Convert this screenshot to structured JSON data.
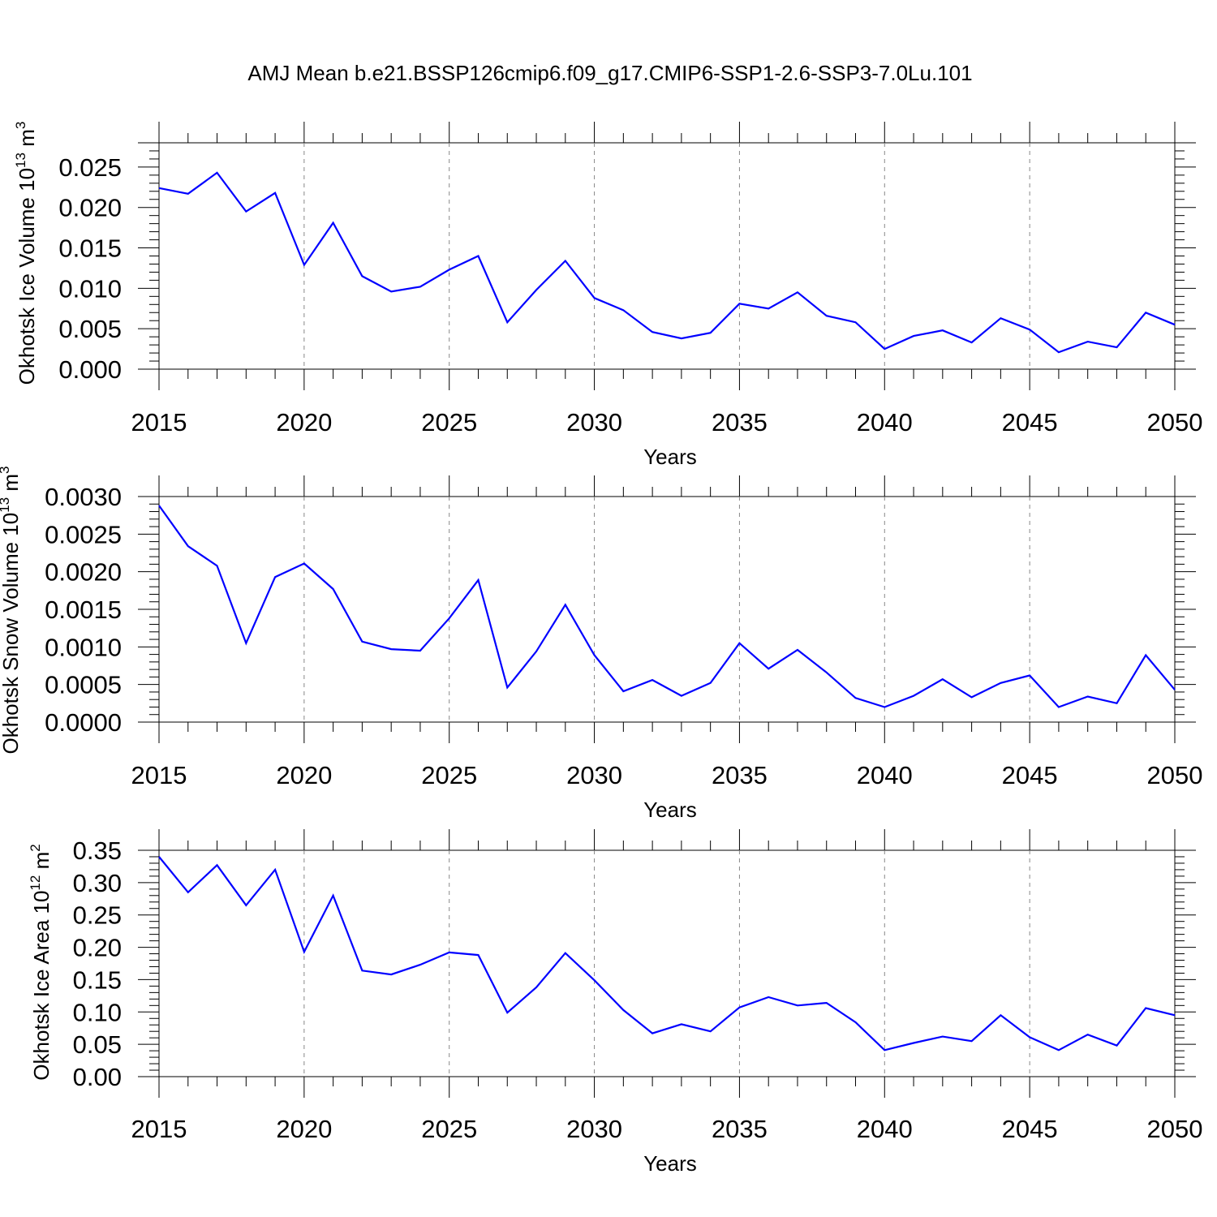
{
  "title": "AMJ Mean b.e21.BSSP126cmip6.f09_g17.CMIP6-SSP1-2.6-SSP3-7.0Lu.101",
  "chart_data": [
    {
      "type": "line",
      "name": "ice-volume",
      "ylabel": {
        "main": "Okhotsk Ice Volume 10",
        "exp": "13",
        "unit": " m",
        "unit_exp": "3"
      },
      "xlabel": "Years",
      "xlim": [
        2015,
        2050
      ],
      "ylim": [
        0.0,
        0.028
      ],
      "yticks": [
        0.0,
        0.005,
        0.01,
        0.015,
        0.02,
        0.025
      ],
      "ytick_labels": [
        "0.000",
        "0.005",
        "0.010",
        "0.015",
        "0.020",
        "0.025"
      ],
      "xticks": [
        2015,
        2020,
        2025,
        2030,
        2035,
        2040,
        2045,
        2050
      ],
      "xtick_labels": [
        "2015",
        "2020",
        "2025",
        "2030",
        "2035",
        "2040",
        "2045",
        "2050"
      ],
      "series": [
        {
          "name": "Okhotsk Ice Volume",
          "color": "#0000ff",
          "x": [
            2015,
            2016,
            2017,
            2018,
            2019,
            2020,
            2021,
            2022,
            2023,
            2024,
            2025,
            2026,
            2027,
            2028,
            2029,
            2030,
            2031,
            2032,
            2033,
            2034,
            2035,
            2036,
            2037,
            2038,
            2039,
            2040,
            2041,
            2042,
            2043,
            2044,
            2045,
            2046,
            2047,
            2048,
            2049,
            2050
          ],
          "values": [
            0.0224,
            0.0217,
            0.0243,
            0.0195,
            0.0218,
            0.0129,
            0.0181,
            0.0115,
            0.0096,
            0.0102,
            0.0123,
            0.014,
            0.0058,
            0.0098,
            0.0134,
            0.0088,
            0.0073,
            0.0046,
            0.0038,
            0.0045,
            0.0081,
            0.0075,
            0.0095,
            0.0066,
            0.0058,
            0.0025,
            0.0041,
            0.0048,
            0.0033,
            0.0063,
            0.0049,
            0.0021,
            0.0034,
            0.0027,
            0.007,
            0.0055
          ]
        }
      ]
    },
    {
      "type": "line",
      "name": "snow-volume",
      "ylabel": {
        "main": "Okhotsk Snow Volume 10",
        "exp": "13",
        "unit": " m",
        "unit_exp": "3"
      },
      "xlabel": "Years",
      "xlim": [
        2015,
        2050
      ],
      "ylim": [
        0.0,
        0.003
      ],
      "yticks": [
        0.0,
        0.0005,
        0.001,
        0.0015,
        0.002,
        0.0025,
        0.003
      ],
      "ytick_labels": [
        "0.0000",
        "0.0005",
        "0.0010",
        "0.0015",
        "0.0020",
        "0.0025",
        "0.0030"
      ],
      "xticks": [
        2015,
        2020,
        2025,
        2030,
        2035,
        2040,
        2045,
        2050
      ],
      "xtick_labels": [
        "2015",
        "2020",
        "2025",
        "2030",
        "2035",
        "2040",
        "2045",
        "2050"
      ],
      "series": [
        {
          "name": "Okhotsk Snow Volume",
          "color": "#0000ff",
          "x": [
            2015,
            2016,
            2017,
            2018,
            2019,
            2020,
            2021,
            2022,
            2023,
            2024,
            2025,
            2026,
            2027,
            2028,
            2029,
            2030,
            2031,
            2032,
            2033,
            2034,
            2035,
            2036,
            2037,
            2038,
            2039,
            2040,
            2041,
            2042,
            2043,
            2044,
            2045,
            2046,
            2047,
            2048,
            2049,
            2050
          ],
          "values": [
            0.00288,
            0.00234,
            0.00208,
            0.00105,
            0.00193,
            0.00211,
            0.00177,
            0.00107,
            0.00097,
            0.00095,
            0.00138,
            0.00189,
            0.00046,
            0.00094,
            0.00156,
            0.00089,
            0.00041,
            0.00056,
            0.00035,
            0.00052,
            0.00105,
            0.00071,
            0.00096,
            0.00066,
            0.00032,
            0.0002,
            0.00035,
            0.00057,
            0.00033,
            0.00052,
            0.00062,
            0.0002,
            0.00034,
            0.00025,
            0.00089,
            0.00043
          ]
        }
      ]
    },
    {
      "type": "line",
      "name": "ice-area",
      "ylabel": {
        "main": "Okhotsk Ice Area 10",
        "exp": "12",
        "unit": " m",
        "unit_exp": "2"
      },
      "xlabel": "Years",
      "xlim": [
        2015,
        2050
      ],
      "ylim": [
        0.0,
        0.35
      ],
      "yticks": [
        0.0,
        0.05,
        0.1,
        0.15,
        0.2,
        0.25,
        0.3,
        0.35
      ],
      "ytick_labels": [
        "0.00",
        "0.05",
        "0.10",
        "0.15",
        "0.20",
        "0.25",
        "0.30",
        "0.35"
      ],
      "xticks": [
        2015,
        2020,
        2025,
        2030,
        2035,
        2040,
        2045,
        2050
      ],
      "xtick_labels": [
        "2015",
        "2020",
        "2025",
        "2030",
        "2035",
        "2040",
        "2045",
        "2050"
      ],
      "series": [
        {
          "name": "Okhotsk Ice Area",
          "color": "#0000ff",
          "x": [
            2015,
            2016,
            2017,
            2018,
            2019,
            2020,
            2021,
            2022,
            2023,
            2024,
            2025,
            2026,
            2027,
            2028,
            2029,
            2030,
            2031,
            2032,
            2033,
            2034,
            2035,
            2036,
            2037,
            2038,
            2039,
            2040,
            2041,
            2042,
            2043,
            2044,
            2045,
            2046,
            2047,
            2048,
            2049,
            2050
          ],
          "values": [
            0.34,
            0.285,
            0.327,
            0.265,
            0.32,
            0.193,
            0.28,
            0.164,
            0.158,
            0.173,
            0.192,
            0.188,
            0.099,
            0.138,
            0.191,
            0.149,
            0.103,
            0.067,
            0.081,
            0.07,
            0.107,
            0.123,
            0.11,
            0.114,
            0.084,
            0.041,
            0.052,
            0.062,
            0.055,
            0.095,
            0.061,
            0.041,
            0.065,
            0.048,
            0.106,
            0.095
          ]
        }
      ]
    }
  ]
}
